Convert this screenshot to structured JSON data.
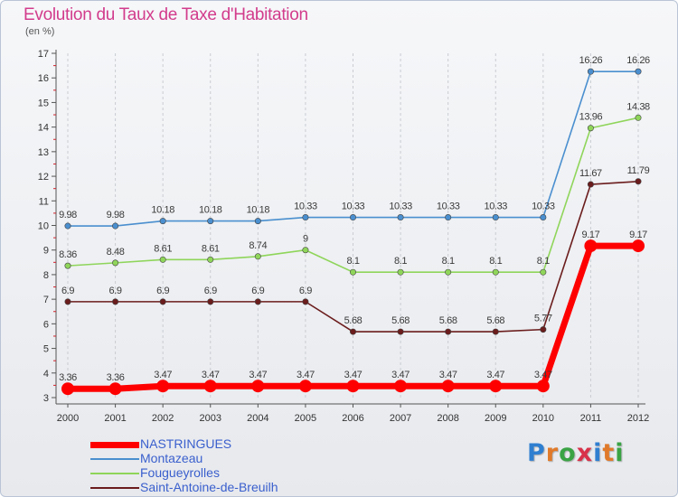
{
  "page": {
    "title": "Evolution du Taux de Taxe d'Habitation",
    "subtitle": "(en %)"
  },
  "logo": {
    "text": "Proxiti",
    "letters": [
      "P",
      "r",
      "o",
      "x",
      "i",
      "t",
      "i"
    ],
    "colors": [
      "#2f7fd1",
      "#e07a2a",
      "#3aa344",
      "#d8324a",
      "#2f7fd1",
      "#e07a2a",
      "#3aa344"
    ]
  },
  "chart_data": {
    "type": "line",
    "title": "Evolution du Taux de Taxe d'Habitation",
    "ylabel": "(en %)",
    "xlabel": "",
    "x": [
      "2000",
      "2001",
      "2002",
      "2003",
      "2004",
      "2005",
      "2006",
      "2007",
      "2008",
      "2009",
      "2010",
      "2011",
      "2012"
    ],
    "ylim": [
      3,
      17
    ],
    "yticks": [
      "3",
      "4",
      "5",
      "6",
      "7",
      "8",
      "9",
      "10",
      "11",
      "12",
      "13",
      "14",
      "15",
      "16",
      "17"
    ],
    "grid": "vertical dashed",
    "legend_position": "bottom-left",
    "series": [
      {
        "name": "NASTRINGUES",
        "color": "#ff0000",
        "emphasis": true,
        "values": [
          3.36,
          3.36,
          3.47,
          3.47,
          3.47,
          3.47,
          3.47,
          3.47,
          3.47,
          3.47,
          3.47,
          9.17,
          9.17
        ],
        "labels": [
          "3.36",
          "3.36",
          "3.47",
          "3.47",
          "3.47",
          "3.47",
          "3.47",
          "3.47",
          "3.47",
          "3.47",
          "3.47",
          "9.17",
          "9.17"
        ]
      },
      {
        "name": "Montazeau",
        "color": "#4a8fcf",
        "emphasis": false,
        "values": [
          9.98,
          9.98,
          10.18,
          10.18,
          10.18,
          10.33,
          10.33,
          10.33,
          10.33,
          10.33,
          10.33,
          16.26,
          16.26
        ],
        "labels": [
          "9.98",
          "9.98",
          "10.18",
          "10.18",
          "10.18",
          "10.33",
          "10.33",
          "10.33",
          "10.33",
          "10.33",
          "10.33",
          "16.26",
          "16.26"
        ]
      },
      {
        "name": "Fougueyrolles",
        "color": "#8fd55a",
        "emphasis": false,
        "values": [
          8.36,
          8.48,
          8.61,
          8.61,
          8.74,
          9,
          8.1,
          8.1,
          8.1,
          8.1,
          8.1,
          13.96,
          14.38
        ],
        "labels": [
          "8.36",
          "8.48",
          "8.61",
          "8.61",
          "8.74",
          "9",
          "8.1",
          "8.1",
          "8.1",
          "8.1",
          "8.1",
          "13.96",
          "14.38"
        ]
      },
      {
        "name": "Saint-Antoine-de-Breuilh",
        "color": "#6b1c1c",
        "emphasis": false,
        "values": [
          6.9,
          6.9,
          6.9,
          6.9,
          6.9,
          6.9,
          5.68,
          5.68,
          5.68,
          5.68,
          5.77,
          11.67,
          11.79
        ],
        "labels": [
          "6.9",
          "6.9",
          "6.9",
          "6.9",
          "6.9",
          "6.9",
          "5.68",
          "5.68",
          "5.68",
          "5.68",
          "5.77",
          "11.67",
          "11.79"
        ]
      }
    ]
  }
}
